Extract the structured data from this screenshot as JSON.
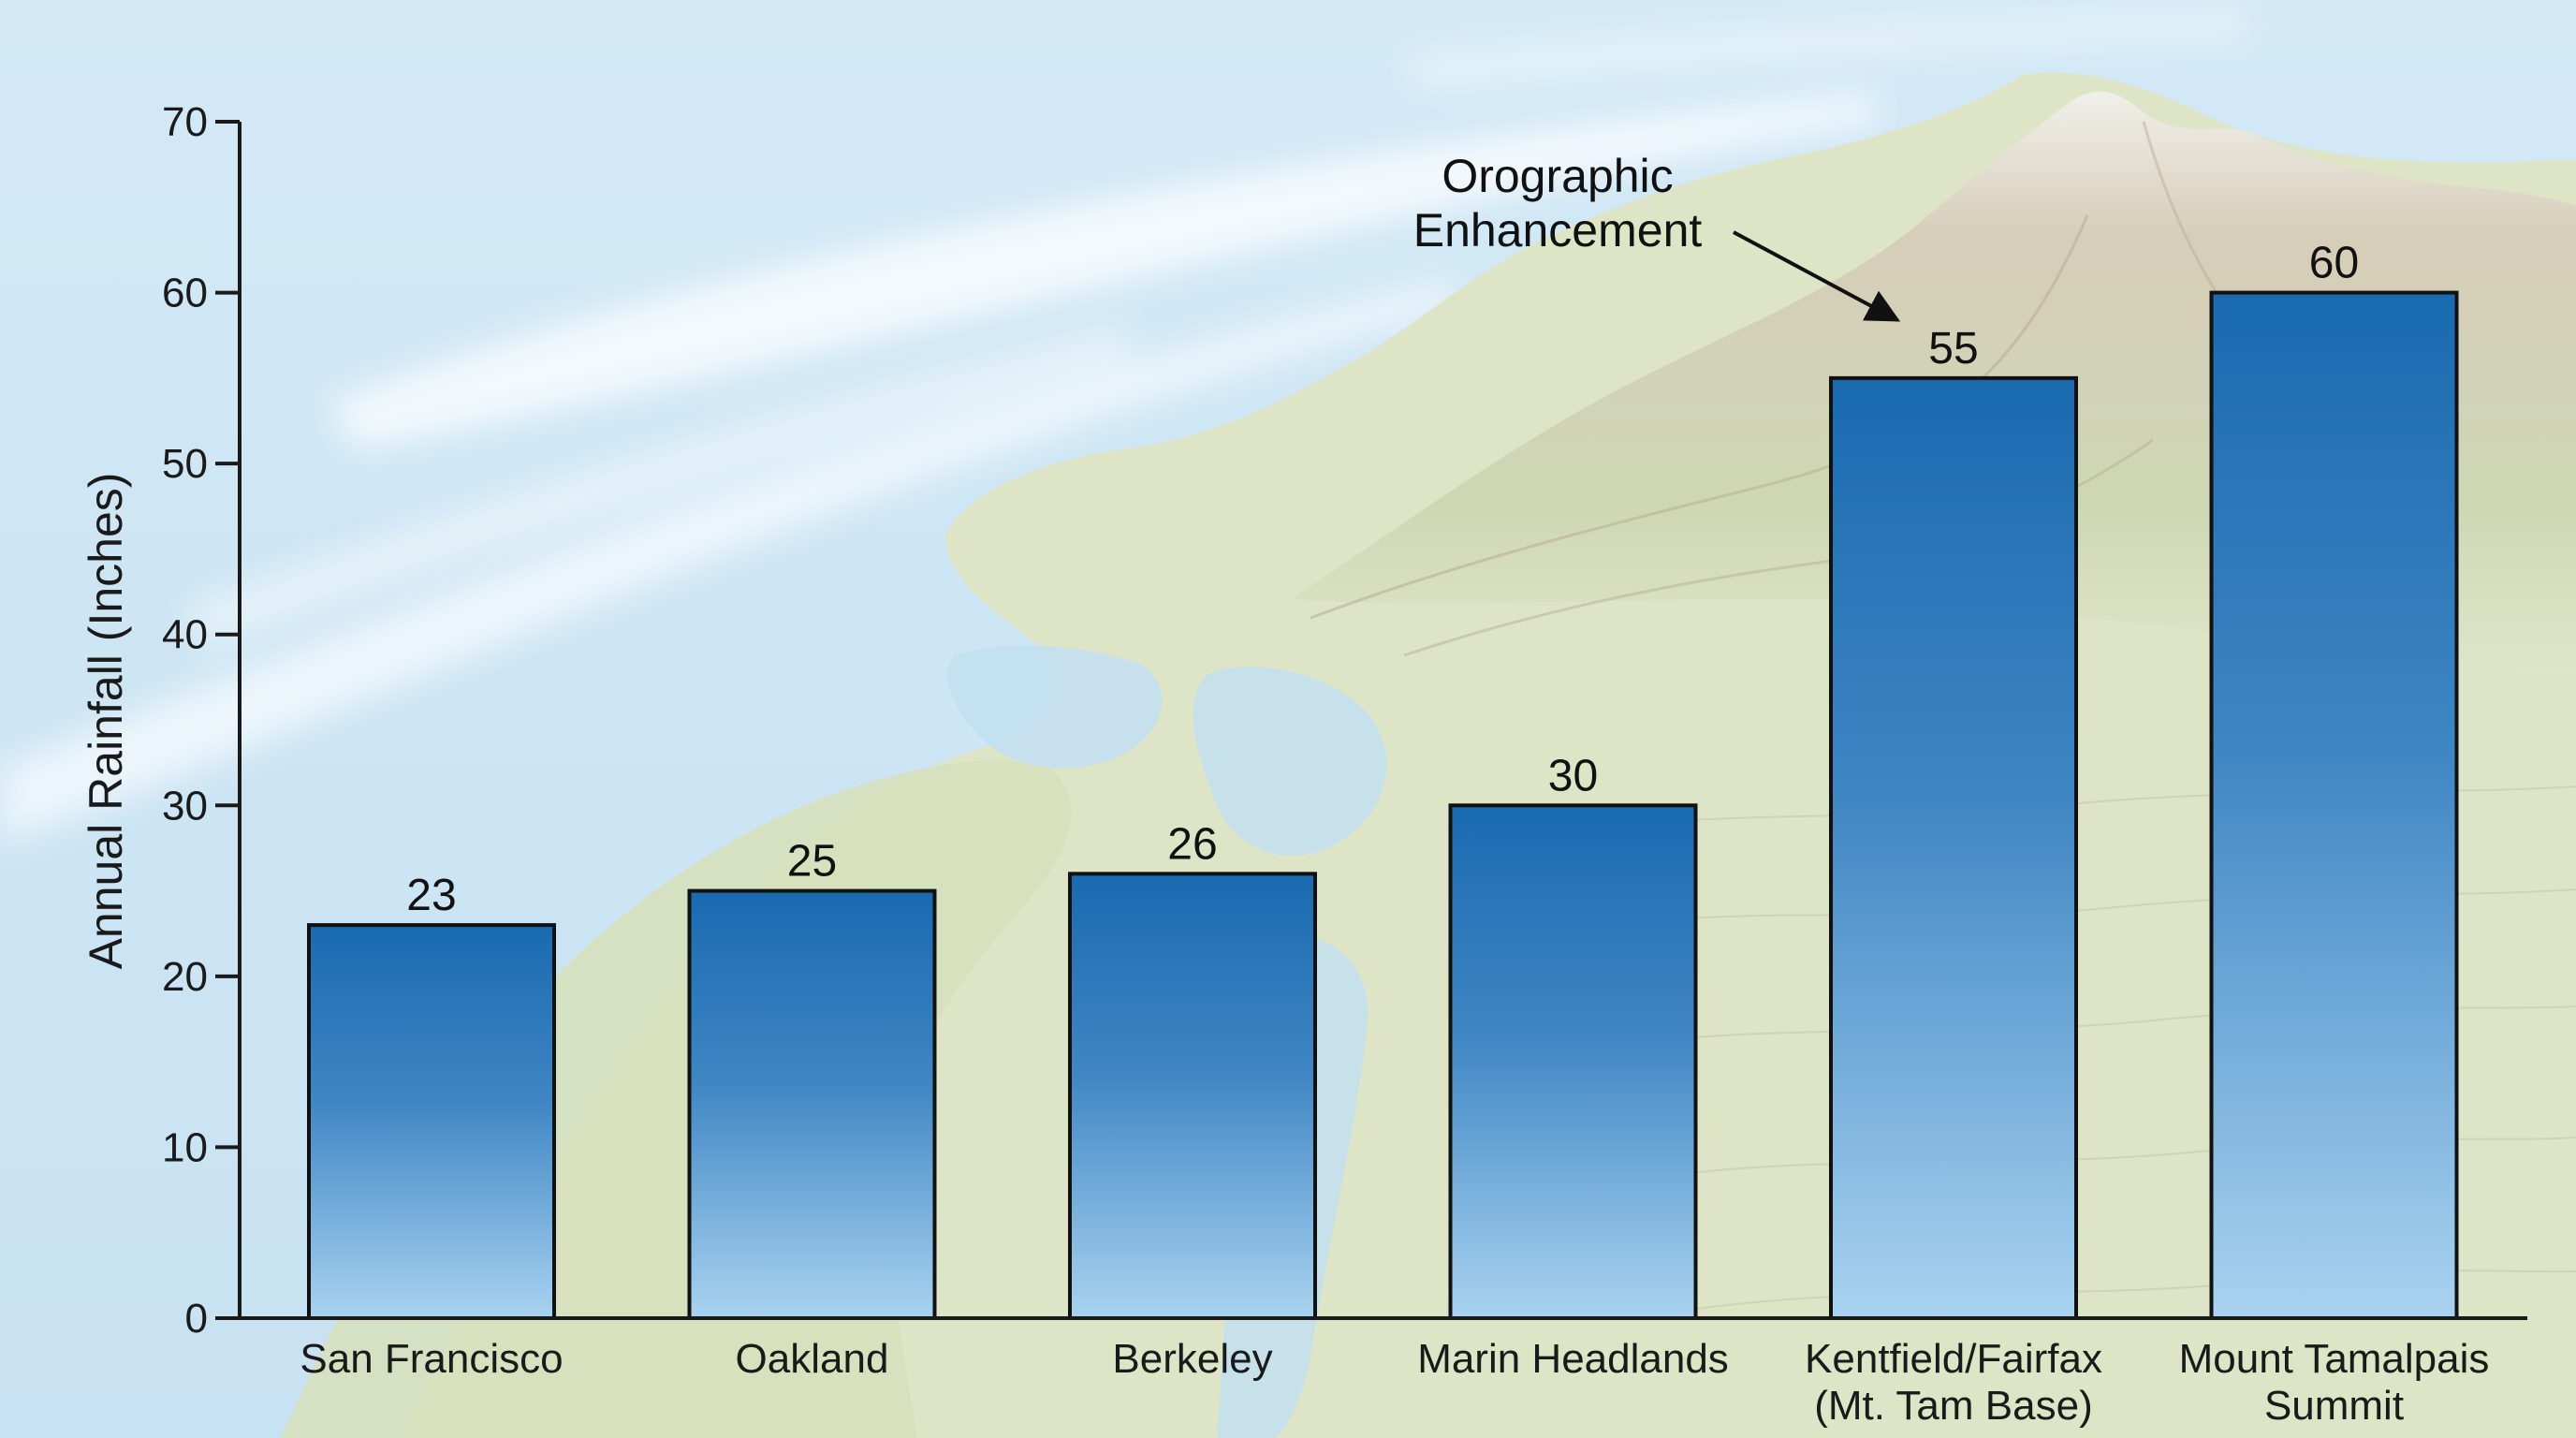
{
  "chart_data": {
    "type": "bar",
    "title": "",
    "xlabel": "",
    "ylabel": "Annual Rainfall (Inches)",
    "ylim": [
      0,
      70
    ],
    "yticks": [
      0,
      10,
      20,
      30,
      40,
      50,
      60,
      70
    ],
    "grid": false,
    "categories": [
      [
        "San Francisco"
      ],
      [
        "Oakland"
      ],
      [
        "Berkeley"
      ],
      [
        "Marin Headlands"
      ],
      [
        "Kentfield/Fairfax",
        "(Mt. Tam Base)"
      ],
      [
        "Mount Tamalpais",
        "Summit"
      ]
    ],
    "values": [
      23,
      25,
      26,
      30,
      55,
      60
    ],
    "value_labels": [
      "23",
      "25",
      "26",
      "30",
      "55",
      "60"
    ],
    "annotation": {
      "lines": [
        "Orographic",
        "Enhancement"
      ],
      "target_category_index": 4
    },
    "colors": {
      "bar_top": "#1a6ab0",
      "bar_bottom": "#a9d3f0",
      "bar_outline": "#111111",
      "axis": "#1a1a1a",
      "sky": "#cfe6f4",
      "land": "#dfe6c8",
      "mountain": "#d9d2c0",
      "water": "#bcdcee"
    },
    "background": "aerial terrain map with clouds"
  }
}
